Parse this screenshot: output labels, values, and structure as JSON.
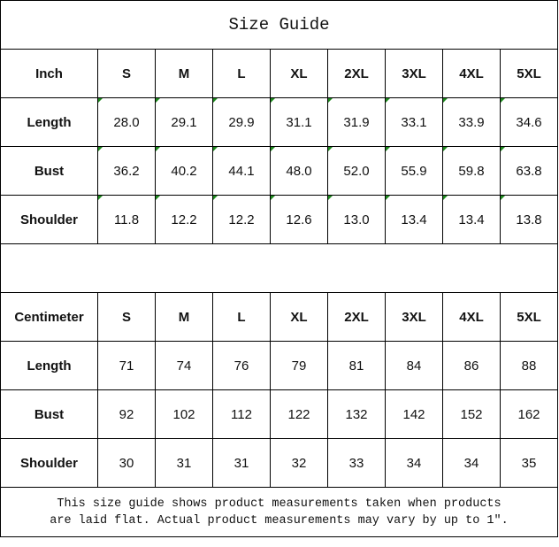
{
  "title": "Size Guide",
  "sizes": [
    "S",
    "M",
    "L",
    "XL",
    "2XL",
    "3XL",
    "4XL",
    "5XL"
  ],
  "inch": {
    "unit_label": "Inch",
    "rows": [
      {
        "label": "Length",
        "values": [
          "28.0",
          "29.1",
          "29.9",
          "31.1",
          "31.9",
          "33.1",
          "33.9",
          "34.6"
        ]
      },
      {
        "label": "Bust",
        "values": [
          "36.2",
          "40.2",
          "44.1",
          "48.0",
          "52.0",
          "55.9",
          "59.8",
          "63.8"
        ]
      },
      {
        "label": "Shoulder",
        "values": [
          "11.8",
          "12.2",
          "12.2",
          "12.6",
          "13.0",
          "13.4",
          "13.4",
          "13.8"
        ]
      }
    ]
  },
  "centimeter": {
    "unit_label": "Centimeter",
    "rows": [
      {
        "label": "Length",
        "values": [
          "71",
          "74",
          "76",
          "79",
          "81",
          "84",
          "86",
          "88"
        ]
      },
      {
        "label": "Bust",
        "values": [
          "92",
          "102",
          "112",
          "122",
          "132",
          "142",
          "152",
          "162"
        ]
      },
      {
        "label": "Shoulder",
        "values": [
          "30",
          "31",
          "31",
          "32",
          "33",
          "34",
          "34",
          "35"
        ]
      }
    ]
  },
  "footer": {
    "line1": "This size guide shows product measurements taken when products",
    "line2": "are laid flat. Actual product measurements may vary by up to 1″."
  },
  "colors": {
    "border": "#000000",
    "error_flag": "#1e8a1e"
  }
}
